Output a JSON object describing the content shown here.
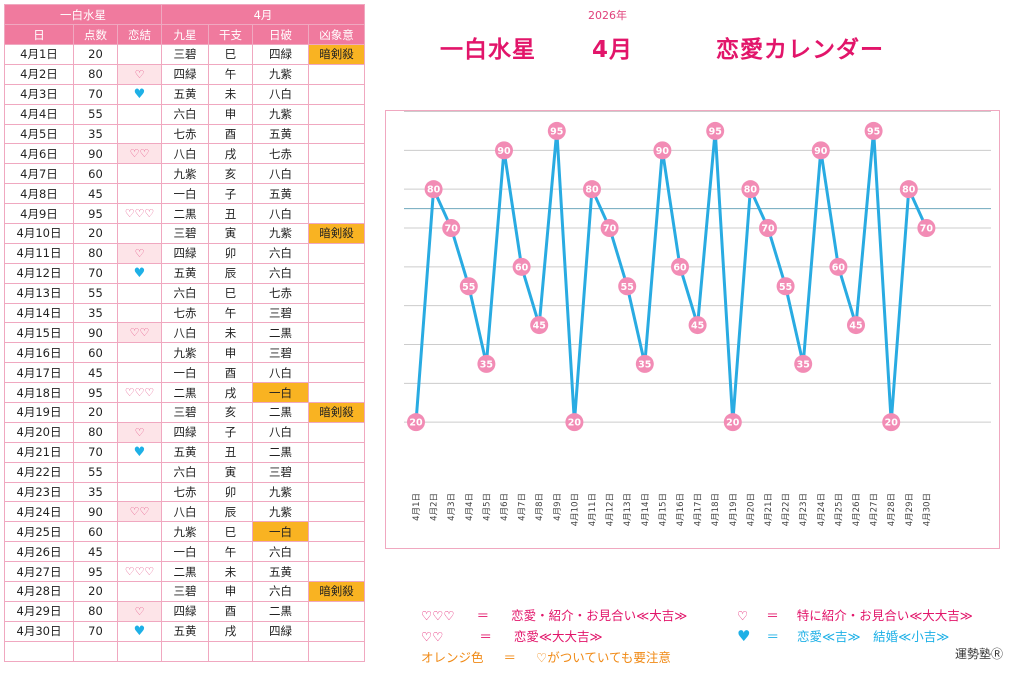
{
  "header": {
    "year": "2026年",
    "title_star": "一白水星",
    "title_month": "4月",
    "title_name": "恋愛カレンダー"
  },
  "table": {
    "group_left": "一白水星",
    "group_right": "4月",
    "columns": [
      "日",
      "点数",
      "恋結",
      "九星",
      "干支",
      "日破",
      "凶象意"
    ],
    "rows": [
      {
        "day": "4月1日",
        "score": "20",
        "mark": "",
        "mark_kind": "",
        "star": "三碧",
        "eto": "巳",
        "hatsu": "四緑",
        "kyo": "暗剣殺",
        "hatsu_orange": false
      },
      {
        "day": "4月2日",
        "score": "80",
        "mark": "♡",
        "mark_kind": "pink",
        "star": "四緑",
        "eto": "午",
        "hatsu": "九紫",
        "kyo": "",
        "hatsu_orange": false
      },
      {
        "day": "4月3日",
        "score": "70",
        "mark": "♥",
        "mark_kind": "blue",
        "star": "五黄",
        "eto": "未",
        "hatsu": "八白",
        "kyo": "",
        "hatsu_orange": false
      },
      {
        "day": "4月4日",
        "score": "55",
        "mark": "",
        "mark_kind": "",
        "star": "六白",
        "eto": "申",
        "hatsu": "九紫",
        "kyo": "",
        "hatsu_orange": false
      },
      {
        "day": "4月5日",
        "score": "35",
        "mark": "",
        "mark_kind": "",
        "star": "七赤",
        "eto": "酉",
        "hatsu": "五黄",
        "kyo": "",
        "hatsu_orange": false
      },
      {
        "day": "4月6日",
        "score": "90",
        "mark": "♡♡",
        "mark_kind": "pink",
        "star": "八白",
        "eto": "戌",
        "hatsu": "七赤",
        "kyo": "",
        "hatsu_orange": false
      },
      {
        "day": "4月7日",
        "score": "60",
        "mark": "",
        "mark_kind": "",
        "star": "九紫",
        "eto": "亥",
        "hatsu": "八白",
        "kyo": "",
        "hatsu_orange": false
      },
      {
        "day": "4月8日",
        "score": "45",
        "mark": "",
        "mark_kind": "",
        "star": "一白",
        "eto": "子",
        "hatsu": "五黄",
        "kyo": "",
        "hatsu_orange": false
      },
      {
        "day": "4月9日",
        "score": "95",
        "mark": "♡♡♡",
        "mark_kind": "plain",
        "star": "二黒",
        "eto": "丑",
        "hatsu": "八白",
        "kyo": "",
        "hatsu_orange": false
      },
      {
        "day": "4月10日",
        "score": "20",
        "mark": "",
        "mark_kind": "",
        "star": "三碧",
        "eto": "寅",
        "hatsu": "九紫",
        "kyo": "暗剣殺",
        "hatsu_orange": false
      },
      {
        "day": "4月11日",
        "score": "80",
        "mark": "♡",
        "mark_kind": "pink",
        "star": "四緑",
        "eto": "卯",
        "hatsu": "六白",
        "kyo": "",
        "hatsu_orange": false
      },
      {
        "day": "4月12日",
        "score": "70",
        "mark": "♥",
        "mark_kind": "blue",
        "star": "五黄",
        "eto": "辰",
        "hatsu": "六白",
        "kyo": "",
        "hatsu_orange": false
      },
      {
        "day": "4月13日",
        "score": "55",
        "mark": "",
        "mark_kind": "",
        "star": "六白",
        "eto": "巳",
        "hatsu": "七赤",
        "kyo": "",
        "hatsu_orange": false
      },
      {
        "day": "4月14日",
        "score": "35",
        "mark": "",
        "mark_kind": "",
        "star": "七赤",
        "eto": "午",
        "hatsu": "三碧",
        "kyo": "",
        "hatsu_orange": false
      },
      {
        "day": "4月15日",
        "score": "90",
        "mark": "♡♡",
        "mark_kind": "pink",
        "star": "八白",
        "eto": "未",
        "hatsu": "二黒",
        "kyo": "",
        "hatsu_orange": false
      },
      {
        "day": "4月16日",
        "score": "60",
        "mark": "",
        "mark_kind": "",
        "star": "九紫",
        "eto": "申",
        "hatsu": "三碧",
        "kyo": "",
        "hatsu_orange": false
      },
      {
        "day": "4月17日",
        "score": "45",
        "mark": "",
        "mark_kind": "",
        "star": "一白",
        "eto": "酉",
        "hatsu": "八白",
        "kyo": "",
        "hatsu_orange": false
      },
      {
        "day": "4月18日",
        "score": "95",
        "mark": "♡♡♡",
        "mark_kind": "plain",
        "star": "二黒",
        "eto": "戌",
        "hatsu": "一白",
        "kyo": "",
        "hatsu_orange": true
      },
      {
        "day": "4月19日",
        "score": "20",
        "mark": "",
        "mark_kind": "",
        "star": "三碧",
        "eto": "亥",
        "hatsu": "二黒",
        "kyo": "暗剣殺",
        "hatsu_orange": false
      },
      {
        "day": "4月20日",
        "score": "80",
        "mark": "♡",
        "mark_kind": "pink",
        "star": "四緑",
        "eto": "子",
        "hatsu": "八白",
        "kyo": "",
        "hatsu_orange": false
      },
      {
        "day": "4月21日",
        "score": "70",
        "mark": "♥",
        "mark_kind": "blue",
        "star": "五黄",
        "eto": "丑",
        "hatsu": "二黒",
        "kyo": "",
        "hatsu_orange": false
      },
      {
        "day": "4月22日",
        "score": "55",
        "mark": "",
        "mark_kind": "",
        "star": "六白",
        "eto": "寅",
        "hatsu": "三碧",
        "kyo": "",
        "hatsu_orange": false
      },
      {
        "day": "4月23日",
        "score": "35",
        "mark": "",
        "mark_kind": "",
        "star": "七赤",
        "eto": "卯",
        "hatsu": "九紫",
        "kyo": "",
        "hatsu_orange": false
      },
      {
        "day": "4月24日",
        "score": "90",
        "mark": "♡♡",
        "mark_kind": "pink",
        "star": "八白",
        "eto": "辰",
        "hatsu": "九紫",
        "kyo": "",
        "hatsu_orange": false
      },
      {
        "day": "4月25日",
        "score": "60",
        "mark": "",
        "mark_kind": "",
        "star": "九紫",
        "eto": "巳",
        "hatsu": "一白",
        "kyo": "",
        "hatsu_orange": true
      },
      {
        "day": "4月26日",
        "score": "45",
        "mark": "",
        "mark_kind": "",
        "star": "一白",
        "eto": "午",
        "hatsu": "六白",
        "kyo": "",
        "hatsu_orange": false
      },
      {
        "day": "4月27日",
        "score": "95",
        "mark": "♡♡♡",
        "mark_kind": "plain",
        "star": "二黒",
        "eto": "未",
        "hatsu": "五黄",
        "kyo": "",
        "hatsu_orange": false
      },
      {
        "day": "4月28日",
        "score": "20",
        "mark": "",
        "mark_kind": "",
        "star": "三碧",
        "eto": "申",
        "hatsu": "六白",
        "kyo": "暗剣殺",
        "hatsu_orange": false
      },
      {
        "day": "4月29日",
        "score": "80",
        "mark": "♡",
        "mark_kind": "pink",
        "star": "四緑",
        "eto": "酉",
        "hatsu": "二黒",
        "kyo": "",
        "hatsu_orange": false
      },
      {
        "day": "4月30日",
        "score": "70",
        "mark": "♥",
        "mark_kind": "blue",
        "star": "五黄",
        "eto": "戌",
        "hatsu": "四緑",
        "kyo": "",
        "hatsu_orange": false
      }
    ]
  },
  "chart_data": {
    "type": "line",
    "categories": [
      "4月1日",
      "4月2日",
      "4月3日",
      "4月4日",
      "4月5日",
      "4月6日",
      "4月7日",
      "4月8日",
      "4月9日",
      "4月10日",
      "4月11日",
      "4月12日",
      "4月13日",
      "4月14日",
      "4月15日",
      "4月16日",
      "4月17日",
      "4月18日",
      "4月19日",
      "4月20日",
      "4月21日",
      "4月22日",
      "4月23日",
      "4月24日",
      "4月25日",
      "4月26日",
      "4月27日",
      "4月28日",
      "4月29日",
      "4月30日"
    ],
    "values": [
      20,
      80,
      70,
      55,
      35,
      90,
      60,
      45,
      95,
      20,
      80,
      70,
      55,
      35,
      90,
      60,
      45,
      95,
      20,
      80,
      70,
      55,
      35,
      90,
      60,
      45,
      95,
      20,
      80,
      70
    ],
    "ylim": [
      10,
      100
    ],
    "reference_line": 75,
    "grid": true,
    "line_color": "#29abe2",
    "marker_color": "#f28cb5",
    "label_color": "#ffffff"
  },
  "legend": [
    {
      "symbol": "♡♡♡",
      "eq": "＝",
      "text": "恋愛・紹介・お見合い≪大吉≫",
      "color": "#e2156a"
    },
    {
      "symbol": "♡",
      "eq": "＝",
      "text": "特に紹介・お見合い≪大大吉≫",
      "color": "#e2156a"
    },
    {
      "symbol": "♡♡",
      "eq": "＝",
      "text": "恋愛≪大大吉≫",
      "color": "#e2156a"
    },
    {
      "symbol": "♥",
      "eq": "＝",
      "text": "恋愛≪吉≫　結婚≪小吉≫",
      "color": "#1eb0e6"
    },
    {
      "symbol": "オレンジ色",
      "eq": "＝",
      "text": "♡がついていても要注意",
      "color": "#f08a16"
    }
  ],
  "credit": "運勢塾Ⓡ",
  "colors": {
    "header_pink": "#f07a9e",
    "border_pink": "#f0a8c0",
    "orange": "#f9b322",
    "pink_text": "#e2156a",
    "blue": "#1eb0e6"
  }
}
